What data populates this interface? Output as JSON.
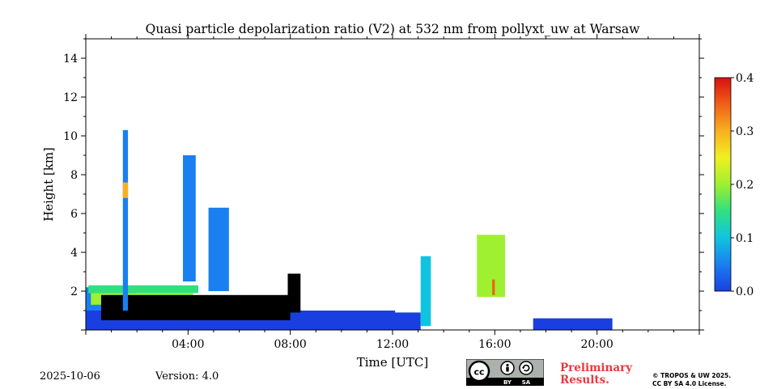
{
  "chart_data": {
    "type": "heatmap",
    "title": "Quasi particle depolarization ratio (V2) at 532 nm from pollyxt_uw at Warsaw",
    "xlabel": "Time [UTC]",
    "ylabel": "Height [km]",
    "xlim": [
      0,
      24
    ],
    "ylim": [
      0,
      15
    ],
    "x_ticks": [
      {
        "value": 4,
        "label": "04:00"
      },
      {
        "value": 8,
        "label": "08:00"
      },
      {
        "value": 12,
        "label": "12:00"
      },
      {
        "value": 16,
        "label": "16:00"
      },
      {
        "value": 20,
        "label": "20:00"
      }
    ],
    "y_ticks": [
      {
        "value": 2,
        "label": "2"
      },
      {
        "value": 4,
        "label": "4"
      },
      {
        "value": 6,
        "label": "6"
      },
      {
        "value": 8,
        "label": "8"
      },
      {
        "value": 10,
        "label": "10"
      },
      {
        "value": 12,
        "label": "12"
      },
      {
        "value": 14,
        "label": "14"
      }
    ],
    "colorbar": {
      "min": 0.0,
      "max": 0.4,
      "ticks": [
        {
          "value": 0.0,
          "label": "0.0"
        },
        {
          "value": 0.1,
          "label": "0.1"
        },
        {
          "value": 0.2,
          "label": "0.2"
        },
        {
          "value": 0.3,
          "label": "0.3"
        },
        {
          "value": 0.4,
          "label": "0.4"
        }
      ],
      "colormap": [
        "#1a3fe0",
        "#1a7ff0",
        "#10c4e0",
        "#30e080",
        "#9ef030",
        "#f0f020",
        "#f8b020",
        "#f06018",
        "#d81010"
      ]
    },
    "regions": [
      {
        "name": "boundary layer blue",
        "t0": 0.0,
        "t1": 12.1,
        "h0": 0.0,
        "h1": 1.0,
        "value": 0.02
      },
      {
        "name": "low aerosol blue",
        "t0": 0.0,
        "t1": 2.0,
        "h0": 1.0,
        "h1": 2.2,
        "value": 0.05
      },
      {
        "name": "low aerosol green band",
        "t0": 0.1,
        "t1": 4.4,
        "h0": 1.9,
        "h1": 2.3,
        "value": 0.15
      },
      {
        "name": "low aerosol yellow patches",
        "t0": 0.2,
        "t1": 4.2,
        "h0": 1.3,
        "h1": 1.9,
        "value": 0.2
      },
      {
        "name": "black (no data) layer",
        "t0": 0.6,
        "t1": 8.0,
        "h0": 0.5,
        "h1": 1.8,
        "value": null
      },
      {
        "name": "cirrus column 1",
        "t0": 1.45,
        "t1": 1.65,
        "h0": 1.0,
        "h1": 10.3,
        "value": 0.05
      },
      {
        "name": "cirrus column 1 depolarizing core",
        "t0": 1.45,
        "t1": 1.65,
        "h0": 6.8,
        "h1": 7.6,
        "value": 0.28
      },
      {
        "name": "cirrus column 2",
        "t0": 3.8,
        "t1": 4.3,
        "h0": 2.5,
        "h1": 9.0,
        "value": 0.04
      },
      {
        "name": "cirrus column 3",
        "t0": 4.8,
        "t1": 5.6,
        "h0": 2.0,
        "h1": 6.3,
        "value": 0.04
      },
      {
        "name": "shallow cloud 08h",
        "t0": 7.9,
        "t1": 8.4,
        "h0": 0.6,
        "h1": 2.9,
        "value": null
      },
      {
        "name": "afternoon blue",
        "t0": 8.0,
        "t1": 13.1,
        "h0": 0.0,
        "h1": 0.9,
        "value": 0.02
      },
      {
        "name": "13h column",
        "t0": 13.1,
        "t1": 13.5,
        "h0": 0.2,
        "h1": 3.8,
        "value": 0.12
      },
      {
        "name": "15-16h column",
        "t0": 15.3,
        "t1": 16.4,
        "h0": 1.7,
        "h1": 4.9,
        "value": 0.22
      },
      {
        "name": "15-16h depolarizing core",
        "t0": 15.9,
        "t1": 16.0,
        "h0": 1.8,
        "h1": 2.6,
        "value": 0.35
      },
      {
        "name": "evening low blue",
        "t0": 17.5,
        "t1": 20.6,
        "h0": 0.0,
        "h1": 0.6,
        "value": 0.02
      }
    ]
  },
  "footer": {
    "date": "2025-10-06",
    "version": "Version: 4.0",
    "preliminary_line1": "Preliminary",
    "preliminary_line2": "Results.",
    "copyright_line1": "© TROPOS & UW 2025.",
    "copyright_line2": "CC BY SA 4.0 License.",
    "license_badge": {
      "cc": "cc",
      "by": "BY",
      "sa": "SA"
    }
  }
}
